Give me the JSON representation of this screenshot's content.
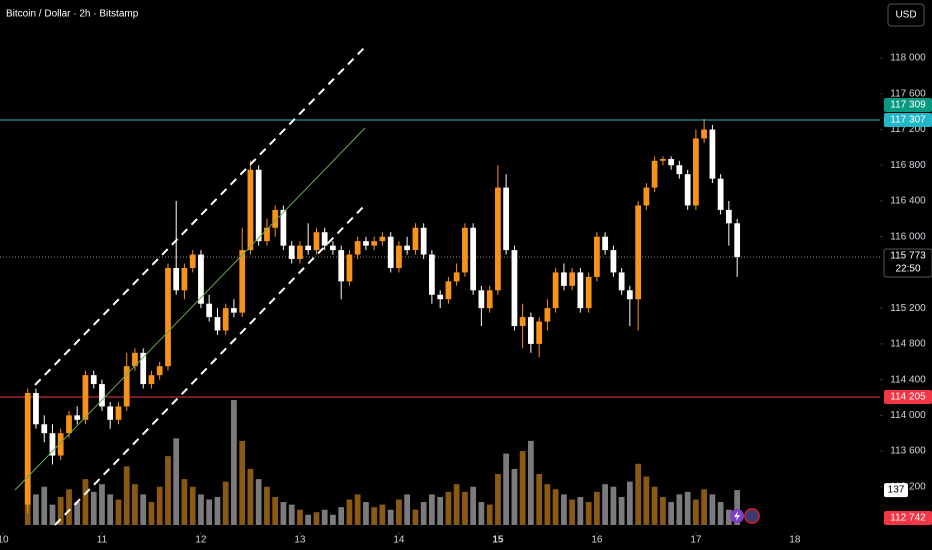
{
  "chart_data": {
    "type": "candlestick",
    "title": "Bitcoin / Dollar · 2h · Bitstamp",
    "currency": "USD",
    "up_color": "#f7931a",
    "down_color": "#ffffff",
    "volume_up_color": "#8a5a14",
    "volume_down_color": "#7b7b7b",
    "xlim": [
      9.97,
      18.86
    ],
    "xticks": [
      10,
      11,
      12,
      13,
      14,
      15,
      16,
      17,
      18
    ],
    "highlight_xtick": 15,
    "ylim": [
      112750,
      118650
    ],
    "yticks": [
      {
        "value": 113200,
        "label": "113 200"
      },
      {
        "value": 113600,
        "label": "113 600"
      },
      {
        "value": 114000,
        "label": "114 000"
      },
      {
        "value": 114400,
        "label": "114 400"
      },
      {
        "value": 114800,
        "label": "114 800"
      },
      {
        "value": 115200,
        "label": "115 200"
      },
      {
        "value": 116000,
        "label": "116 000"
      },
      {
        "value": 116400,
        "label": "116 400"
      },
      {
        "value": 116800,
        "label": "116 800"
      },
      {
        "value": 117200,
        "label": "117 200"
      },
      {
        "value": 117600,
        "label": "117 600"
      },
      {
        "value": 118000,
        "label": "118 000"
      }
    ],
    "x": [
      10.25,
      10.333,
      10.417,
      10.5,
      10.583,
      10.667,
      10.75,
      10.833,
      10.917,
      11,
      11.083,
      11.167,
      11.25,
      11.333,
      11.417,
      11.5,
      11.583,
      11.667,
      11.75,
      11.833,
      11.917,
      12,
      12.083,
      12.167,
      12.25,
      12.333,
      12.417,
      12.5,
      12.583,
      12.667,
      12.75,
      12.833,
      12.917,
      13,
      13.083,
      13.167,
      13.25,
      13.333,
      13.417,
      13.5,
      13.583,
      13.667,
      13.75,
      13.833,
      13.917,
      14,
      14.083,
      14.167,
      14.25,
      14.333,
      14.417,
      14.5,
      14.583,
      14.667,
      14.75,
      14.833,
      14.917,
      15,
      15.083,
      15.167,
      15.25,
      15.333,
      15.417,
      15.5,
      15.583,
      15.667,
      15.75,
      15.833,
      15.917,
      16,
      16.083,
      16.167,
      16.25,
      16.333,
      16.417,
      16.5,
      16.583,
      16.667,
      16.75,
      16.833,
      16.917,
      17,
      17.083,
      17.167,
      17.25,
      17.333,
      17.417
    ],
    "ohlc": [
      [
        113000,
        114300,
        112900,
        114250
      ],
      [
        114250,
        114300,
        113850,
        113900
      ],
      [
        113900,
        114000,
        113700,
        113800
      ],
      [
        113800,
        113900,
        113450,
        113550
      ],
      [
        113550,
        113850,
        113500,
        113800
      ],
      [
        113800,
        114050,
        113750,
        114000
      ],
      [
        114000,
        114100,
        113900,
        113950
      ],
      [
        113950,
        114500,
        113900,
        114450
      ],
      [
        114450,
        114500,
        114300,
        114350
      ],
      [
        114350,
        114400,
        114050,
        114100
      ],
      [
        114100,
        114150,
        113850,
        113950
      ],
      [
        113950,
        114150,
        113900,
        114100
      ],
      [
        114100,
        114700,
        114050,
        114550
      ],
      [
        114550,
        114750,
        114500,
        114700
      ],
      [
        114700,
        114750,
        114300,
        114350
      ],
      [
        114350,
        114500,
        114300,
        114450
      ],
      [
        114450,
        114600,
        114400,
        114550
      ],
      [
        114550,
        115700,
        114500,
        115650
      ],
      [
        115650,
        116400,
        115350,
        115400
      ],
      [
        115400,
        115700,
        115300,
        115650
      ],
      [
        115650,
        115850,
        115600,
        115800
      ],
      [
        115800,
        115850,
        115200,
        115250
      ],
      [
        115250,
        115350,
        115050,
        115100
      ],
      [
        115100,
        115200,
        114900,
        114950
      ],
      [
        114950,
        115250,
        114900,
        115200
      ],
      [
        115200,
        115300,
        115100,
        115150
      ],
      [
        115150,
        116100,
        115100,
        115850
      ],
      [
        115850,
        116850,
        115800,
        116750
      ],
      [
        116750,
        116800,
        115900,
        115950
      ],
      [
        115950,
        116200,
        115900,
        116100
      ],
      [
        116100,
        116350,
        116000,
        116300
      ],
      [
        116300,
        116350,
        115850,
        115900
      ],
      [
        115900,
        115950,
        115700,
        115750
      ],
      [
        115750,
        115950,
        115700,
        115900
      ],
      [
        115900,
        116150,
        115800,
        115850
      ],
      [
        115850,
        116100,
        115800,
        116050
      ],
      [
        116050,
        116100,
        115850,
        115900
      ],
      [
        115900,
        115950,
        115800,
        115850
      ],
      [
        115850,
        115900,
        115300,
        115500
      ],
      [
        115500,
        115850,
        115450,
        115800
      ],
      [
        115800,
        116000,
        115750,
        115950
      ],
      [
        115950,
        116000,
        115850,
        115900
      ],
      [
        115900,
        116000,
        115850,
        115950
      ],
      [
        115950,
        116050,
        115900,
        116000
      ],
      [
        116000,
        116050,
        115600,
        115650
      ],
      [
        115650,
        115950,
        115600,
        115900
      ],
      [
        115900,
        116000,
        115800,
        115850
      ],
      [
        115850,
        116150,
        115800,
        116100
      ],
      [
        116100,
        116150,
        115750,
        115800
      ],
      [
        115800,
        115850,
        115250,
        115350
      ],
      [
        115350,
        115400,
        115200,
        115300
      ],
      [
        115300,
        115550,
        115250,
        115500
      ],
      [
        115500,
        115700,
        115450,
        115600
      ],
      [
        115600,
        116150,
        115550,
        116100
      ],
      [
        116100,
        116150,
        115350,
        115400
      ],
      [
        115400,
        115450,
        115000,
        115200
      ],
      [
        115200,
        115450,
        115150,
        115400
      ],
      [
        115400,
        116800,
        115350,
        116550
      ],
      [
        116550,
        116700,
        115800,
        115850
      ],
      [
        115850,
        115900,
        114950,
        115000
      ],
      [
        115000,
        115250,
        114750,
        115100
      ],
      [
        115100,
        115150,
        114700,
        114800
      ],
      [
        114800,
        115100,
        114650,
        115050
      ],
      [
        115050,
        115300,
        114950,
        115200
      ],
      [
        115200,
        115650,
        115150,
        115600
      ],
      [
        115600,
        115700,
        115400,
        115450
      ],
      [
        115450,
        115650,
        115400,
        115600
      ],
      [
        115600,
        115650,
        115150,
        115200
      ],
      [
        115200,
        115600,
        115150,
        115550
      ],
      [
        115550,
        116050,
        115500,
        116000
      ],
      [
        116000,
        116050,
        115800,
        115850
      ],
      [
        115850,
        115900,
        115550,
        115600
      ],
      [
        115600,
        115650,
        115350,
        115400
      ],
      [
        115400,
        115450,
        115000,
        115300
      ],
      [
        115300,
        116400,
        114950,
        116350
      ],
      [
        116350,
        116600,
        116300,
        116550
      ],
      [
        116550,
        116900,
        116500,
        116850
      ],
      [
        116850,
        116900,
        116800,
        116870
      ],
      [
        116870,
        116900,
        116750,
        116800
      ],
      [
        116800,
        116850,
        116650,
        116700
      ],
      [
        116700,
        116750,
        116300,
        116350
      ],
      [
        116350,
        117200,
        116300,
        117100
      ],
      [
        117100,
        117320,
        117050,
        117200
      ],
      [
        117200,
        117250,
        116600,
        116650
      ],
      [
        116650,
        116700,
        116250,
        116300
      ],
      [
        116300,
        116400,
        115900,
        116150
      ],
      [
        116150,
        116200,
        115550,
        115773
      ]
    ],
    "volume": [
      360,
      120,
      150,
      80,
      110,
      140,
      90,
      180,
      130,
      160,
      120,
      100,
      230,
      160,
      120,
      90,
      150,
      270,
      340,
      180,
      150,
      120,
      100,
      110,
      170,
      490,
      330,
      220,
      180,
      150,
      110,
      90,
      80,
      60,
      40,
      50,
      60,
      40,
      70,
      100,
      120,
      90,
      70,
      80,
      60,
      100,
      120,
      60,
      90,
      120,
      110,
      130,
      160,
      130,
      150,
      90,
      80,
      200,
      280,
      220,
      290,
      330,
      200,
      160,
      140,
      120,
      100,
      110,
      90,
      130,
      160,
      150,
      110,
      170,
      240,
      190,
      150,
      110,
      90,
      120,
      130,
      100,
      140,
      120,
      90,
      60,
      137
    ],
    "volume_label": "137",
    "last_price": {
      "value": 115773,
      "label": "115 773",
      "countdown": "22:50"
    },
    "levels": [
      {
        "value": 117307,
        "label": "117 307",
        "color": "#22b8c8"
      },
      {
        "value": 114205,
        "label": "114 205",
        "color": "#f23645"
      }
    ],
    "price_labels": [
      {
        "value": 117309,
        "label": "117 309",
        "color": "#089981"
      },
      {
        "value": 112742,
        "label": "112 742",
        "color": "#f23645"
      }
    ]
  }
}
